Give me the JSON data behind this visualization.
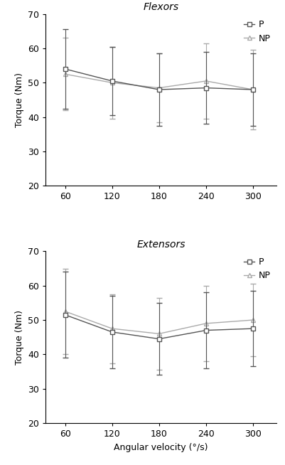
{
  "x": [
    60,
    120,
    180,
    240,
    300
  ],
  "flexors": {
    "P_mean": [
      54.0,
      50.5,
      48.0,
      48.5,
      48.0
    ],
    "P_err": [
      11.5,
      10.0,
      10.5,
      10.5,
      10.5
    ],
    "NP_mean": [
      52.5,
      50.0,
      48.5,
      50.5,
      48.0
    ],
    "NP_err": [
      10.5,
      10.5,
      10.0,
      11.0,
      11.5
    ]
  },
  "extensors": {
    "P_mean": [
      51.5,
      46.5,
      44.5,
      47.0,
      47.5
    ],
    "P_err": [
      12.5,
      10.5,
      10.5,
      11.0,
      11.0
    ],
    "NP_mean": [
      52.5,
      47.5,
      46.0,
      49.0,
      50.0
    ],
    "NP_err": [
      12.5,
      10.0,
      10.5,
      11.0,
      10.5
    ]
  },
  "ylim": [
    20,
    70
  ],
  "yticks": [
    20,
    30,
    40,
    50,
    60,
    70
  ],
  "ylabel": "Torque (Nm)",
  "xlabel": "Angular velocity (°/s)",
  "title_flexors": "Flexors",
  "title_extensors": "Extensors",
  "color_P": "#555555",
  "color_NP": "#aaaaaa",
  "legend_P": "P",
  "legend_NP": "NP"
}
